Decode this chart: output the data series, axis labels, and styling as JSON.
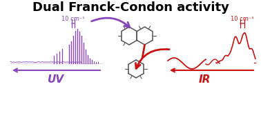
{
  "title": "Dual Franck-Condon activity",
  "title_fontsize": 13,
  "title_fontweight": "bold",
  "background_color": "#ffffff",
  "uv_color": "#8844bb",
  "ir_color": "#cc1111",
  "uv_label": "UV",
  "ir_label": "IR",
  "uv_scale_label": "10 cm⁻¹",
  "ir_scale_label": "10 cm⁻¹",
  "uv_label_fontsize": 11,
  "ir_label_fontsize": 11,
  "mol_color": "#555555",
  "mol_bond_color": "#cc1111"
}
